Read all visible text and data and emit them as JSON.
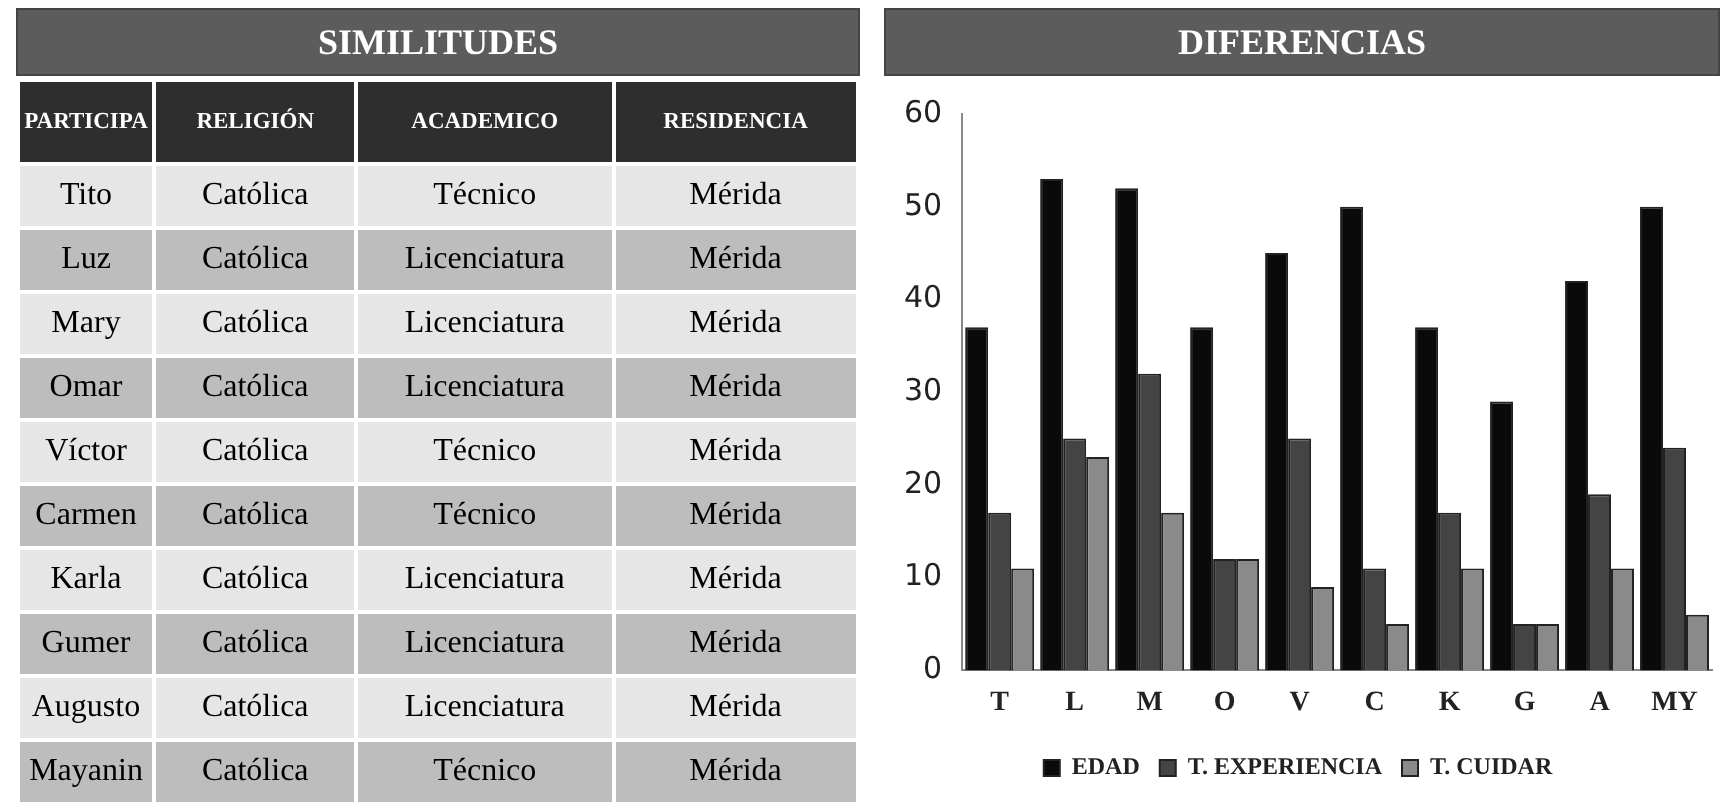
{
  "chart_data": [
    {
      "type": "other",
      "title": "SIMILITUDES",
      "categories": [
        "PARTICIPA",
        "RELIGIÓN",
        "ACADEMICO",
        "RESIDENCIA"
      ],
      "cell_labels": [
        [
          "Tito",
          "Católica",
          "Técnico",
          "Mérida"
        ],
        [
          "Luz",
          "Católica",
          "Licenciatura",
          "Mérida"
        ],
        [
          "Mary",
          "Católica",
          "Licenciatura",
          "Mérida"
        ],
        [
          "Omar",
          "Católica",
          "Licenciatura",
          "Mérida"
        ],
        [
          "Víctor",
          "Católica",
          "Técnico",
          "Mérida"
        ],
        [
          "Carmen",
          "Católica",
          "Técnico",
          "Mérida"
        ],
        [
          "Karla",
          "Católica",
          "Licenciatura",
          "Mérida"
        ],
        [
          "Gumer",
          "Católica",
          "Licenciatura",
          "Mérida"
        ],
        [
          "Augusto",
          "Católica",
          "Licenciatura",
          "Mérida"
        ],
        [
          "Mayanin",
          "Católica",
          "Técnico",
          "Mérida"
        ]
      ]
    },
    {
      "type": "bar",
      "title": "DIFERENCIAS",
      "categories": [
        "T",
        "L",
        "M",
        "O",
        "V",
        "C",
        "K",
        "G",
        "A",
        "MY"
      ],
      "series": [
        {
          "name": "EDAD",
          "color": "#0a0a0a",
          "values": [
            37,
            53,
            52,
            37,
            45,
            50,
            37,
            29,
            42,
            50
          ]
        },
        {
          "name": "T. EXPERIENCIA",
          "color": "#444444",
          "values": [
            17,
            25,
            32,
            12,
            25,
            11,
            17,
            5,
            19,
            24
          ]
        },
        {
          "name": "T. CUIDAR",
          "color": "#8a8a8a",
          "values": [
            11,
            23,
            17,
            12,
            9,
            5,
            11,
            5,
            11,
            6
          ]
        }
      ],
      "ylim": [
        0,
        60
      ],
      "yticks": [
        0,
        10,
        20,
        30,
        40,
        50,
        60
      ],
      "grid": false,
      "legend": "bottom"
    }
  ]
}
